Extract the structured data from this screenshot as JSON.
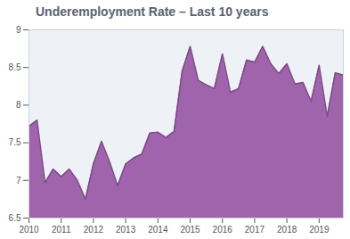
{
  "chart_data": {
    "type": "area",
    "title": "Underemployment Rate – Last 10 years",
    "x": [
      2010,
      2010.25,
      2010.5,
      2010.75,
      2011,
      2011.25,
      2011.5,
      2011.75,
      2012,
      2012.25,
      2012.5,
      2012.75,
      2013,
      2013.25,
      2013.5,
      2013.75,
      2014,
      2014.25,
      2014.5,
      2014.75,
      2015,
      2015.25,
      2015.5,
      2015.75,
      2016,
      2016.25,
      2016.5,
      2016.75,
      2017,
      2017.25,
      2017.5,
      2017.75,
      2018,
      2018.25,
      2018.5,
      2018.75,
      2019,
      2019.25,
      2019.5,
      2019.75
    ],
    "values": [
      7.72,
      7.8,
      6.97,
      7.15,
      7.05,
      7.15,
      7.0,
      6.75,
      7.22,
      7.52,
      7.25,
      6.93,
      7.22,
      7.3,
      7.35,
      7.63,
      7.64,
      7.57,
      7.65,
      8.45,
      8.78,
      8.33,
      8.27,
      8.22,
      8.68,
      8.17,
      8.22,
      8.6,
      8.57,
      8.78,
      8.55,
      8.42,
      8.55,
      8.28,
      8.3,
      8.05,
      8.53,
      7.85,
      8.43,
      8.4
    ],
    "color": "#9a5ca6",
    "xlim": [
      2010,
      2019.75
    ],
    "xticks": [
      2010,
      2011,
      2012,
      2013,
      2014,
      2015,
      2016,
      2017,
      2018,
      2019
    ],
    "ylim": [
      6.5,
      9
    ],
    "yticks": [
      6.5,
      7,
      7.5,
      8,
      8.5,
      9
    ],
    "grid": false
  }
}
